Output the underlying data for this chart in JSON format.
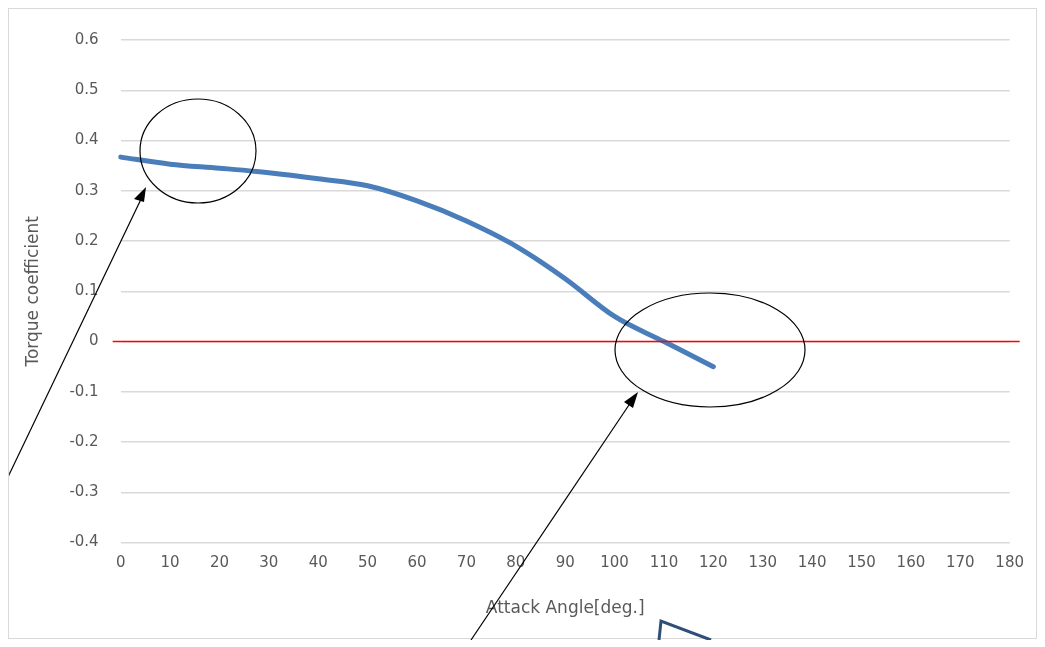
{
  "chart_data": {
    "type": "line",
    "xlabel": "Attack Angle[deg.]",
    "ylabel": "Torque coefficient",
    "categories": [
      "0",
      "10",
      "20",
      "30",
      "40",
      "50",
      "60",
      "70",
      "80",
      "90",
      "100",
      "110",
      "120",
      "130",
      "140",
      "150",
      "160",
      "170",
      "180"
    ],
    "series": [
      {
        "color": "#4a7ebb",
        "values": [
          0.367,
          0.353,
          0.345,
          0.336,
          0.324,
          0.31,
          0.28,
          0.24,
          0.19,
          0.125,
          0.05,
          0.0,
          -0.05,
          null,
          null,
          null,
          null,
          null,
          null
        ]
      }
    ],
    "ylim": [
      -0.4,
      0.6
    ],
    "yticks": [
      -0.4,
      -0.3,
      -0.2,
      -0.1,
      0,
      0.1,
      0.2,
      0.3,
      0.4,
      0.5,
      0.6
    ],
    "grid": "y",
    "legend": false,
    "marker": "none",
    "line_style": "solid",
    "ref_lines": [
      {
        "axis": "y",
        "value": 0,
        "color": "#ff0000"
      }
    ]
  }
}
